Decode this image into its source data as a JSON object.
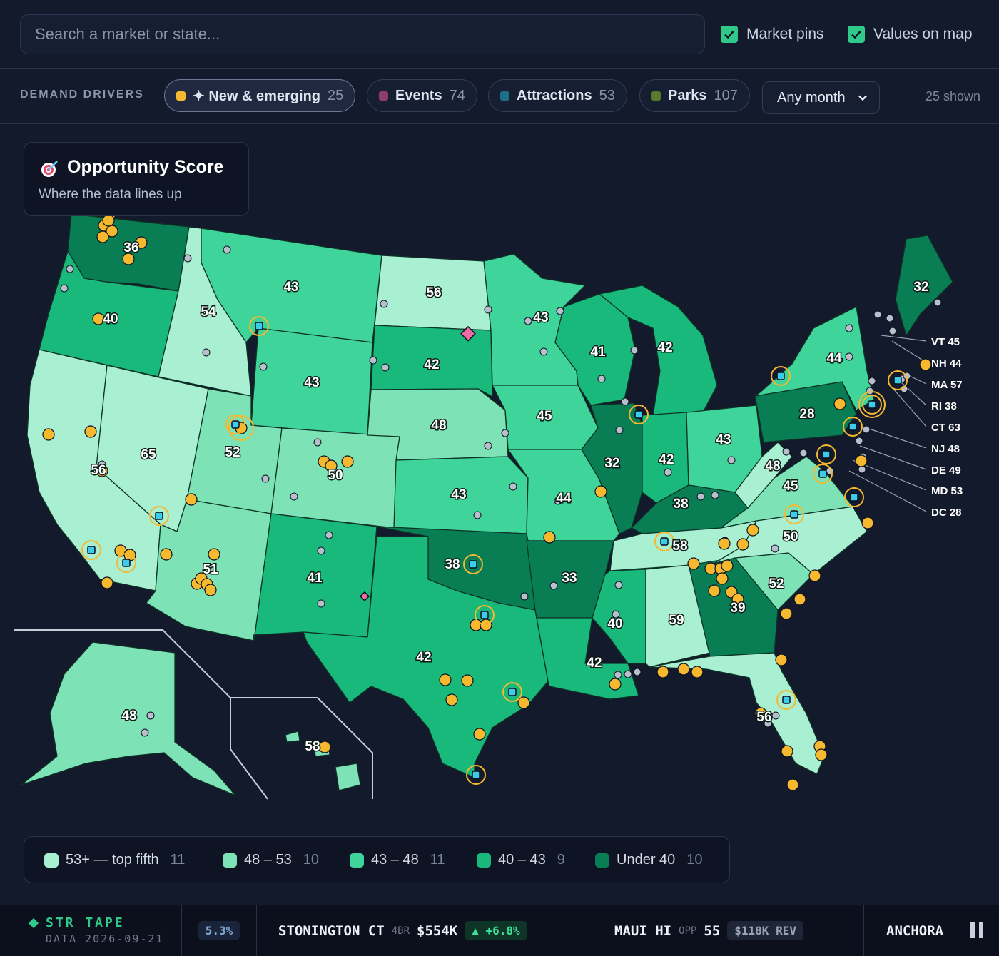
{
  "search": {
    "placeholder": "Search a market or state..."
  },
  "toggles": {
    "market_pins": "Market pins",
    "values_on_map": "Values on map"
  },
  "filters": {
    "label": "DEMAND DRIVERS",
    "chips": [
      {
        "label": "✦ New & emerging",
        "count": "25",
        "color": "#f5b82e"
      },
      {
        "label": "Events",
        "count": "74",
        "color": "#8e3e6a"
      },
      {
        "label": "Attractions",
        "count": "53",
        "color": "#1b6f86"
      },
      {
        "label": "Parks",
        "count": "107",
        "color": "#5a7a2e"
      }
    ],
    "month": "Any month",
    "shown": "25 shown"
  },
  "score_box": {
    "title": "Opportunity Score",
    "subtitle": "Where the data lines up"
  },
  "colors": {
    "top": "#a9efd1",
    "high": "#7ee2b7",
    "mid": "#3fd49a",
    "low": "#19b97b",
    "under": "#097e55",
    "pin": "#f5b82e",
    "attraction": "#3ccbe8",
    "event": "#f06aa6",
    "park_dot": "#b8bfcc"
  },
  "states": [
    {
      "abbr": "WA",
      "score": "36"
    },
    {
      "abbr": "OR",
      "score": "40"
    },
    {
      "abbr": "CA",
      "score": "56"
    },
    {
      "abbr": "NV",
      "score": "65"
    },
    {
      "abbr": "ID",
      "score": "54"
    },
    {
      "abbr": "MT",
      "score": "43"
    },
    {
      "abbr": "WY",
      "score": "43"
    },
    {
      "abbr": "UT",
      "score": "52"
    },
    {
      "abbr": "AZ",
      "score": "51"
    },
    {
      "abbr": "CO",
      "score": "50"
    },
    {
      "abbr": "NM",
      "score": "41"
    },
    {
      "abbr": "ND",
      "score": "56"
    },
    {
      "abbr": "SD",
      "score": "42"
    },
    {
      "abbr": "NE",
      "score": "48"
    },
    {
      "abbr": "KS",
      "score": "43"
    },
    {
      "abbr": "OK",
      "score": "38"
    },
    {
      "abbr": "TX",
      "score": "42"
    },
    {
      "abbr": "MN",
      "score": "43"
    },
    {
      "abbr": "IA",
      "score": "45"
    },
    {
      "abbr": "MO",
      "score": "44"
    },
    {
      "abbr": "AR",
      "score": "33"
    },
    {
      "abbr": "LA",
      "score": "42"
    },
    {
      "abbr": "WI",
      "score": "41"
    },
    {
      "abbr": "IL",
      "score": "32"
    },
    {
      "abbr": "MI",
      "score": "42"
    },
    {
      "abbr": "IN",
      "score": "42"
    },
    {
      "abbr": "OH",
      "score": "43"
    },
    {
      "abbr": "KY",
      "score": "38"
    },
    {
      "abbr": "TN",
      "score": "58"
    },
    {
      "abbr": "MS",
      "score": "40"
    },
    {
      "abbr": "AL",
      "score": "59"
    },
    {
      "abbr": "GA",
      "score": "39"
    },
    {
      "abbr": "FL",
      "score": "56"
    },
    {
      "abbr": "SC",
      "score": "52"
    },
    {
      "abbr": "NC",
      "score": "50"
    },
    {
      "abbr": "VA",
      "score": "45"
    },
    {
      "abbr": "WV",
      "score": "48"
    },
    {
      "abbr": "PA",
      "score": "28"
    },
    {
      "abbr": "NY",
      "score": "44"
    },
    {
      "abbr": "ME",
      "score": "32"
    },
    {
      "abbr": "AK",
      "score": "48"
    },
    {
      "abbr": "HI",
      "score": "58"
    }
  ],
  "callouts": [
    {
      "label": "VT 45"
    },
    {
      "label": "NH 44"
    },
    {
      "label": "MA 57"
    },
    {
      "label": "RI 38"
    },
    {
      "label": "CT 63"
    },
    {
      "label": "NJ 48"
    },
    {
      "label": "DE 49"
    },
    {
      "label": "MD 53"
    },
    {
      "label": "DC 28"
    }
  ],
  "legend": [
    {
      "label": "53+ — top fifth",
      "count": "11",
      "color": "#a9efd1"
    },
    {
      "label": "48 – 53",
      "count": "10",
      "color": "#7ee2b7"
    },
    {
      "label": "43 – 48",
      "count": "11",
      "color": "#3fd49a"
    },
    {
      "label": "40 – 43",
      "count": "9",
      "color": "#19b97b"
    },
    {
      "label": "Under 40",
      "count": "10",
      "color": "#097e55"
    }
  ],
  "ticker": {
    "brand": "STR TAPE",
    "date": "DATA 2026-09-21",
    "prev_pill": "5.3%",
    "item1": {
      "market": "STONINGTON CT",
      "beds": "4BR",
      "price": "$554K",
      "change": "▲ +6.8%"
    },
    "item2": {
      "market": "MAUI HI",
      "opp_label": "OPP",
      "opp": "55",
      "rev": "$118K REV"
    },
    "item3": {
      "market": "ANCHORA"
    }
  }
}
